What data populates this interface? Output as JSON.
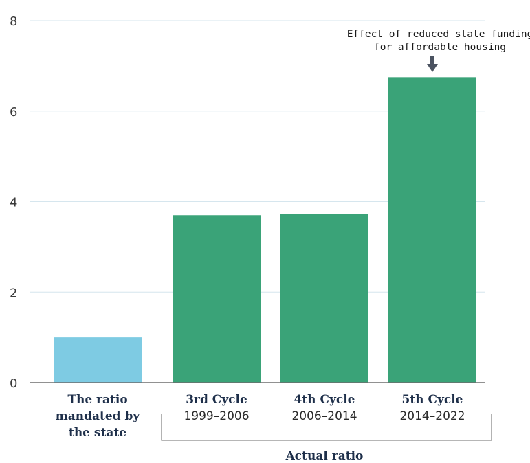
{
  "chart_data": {
    "type": "bar",
    "title": "",
    "xlabel": "",
    "ylabel": "",
    "ylim": [
      0,
      8
    ],
    "yticks": [
      0,
      2,
      4,
      6,
      8
    ],
    "grid": true,
    "categories": [
      {
        "label": "The ratio mandated by the state",
        "lines": [
          "The ratio",
          "mandated by",
          "the state"
        ],
        "sub": ""
      },
      {
        "label": "3rd Cycle",
        "lines": [
          "3rd Cycle"
        ],
        "sub": "1999–2006"
      },
      {
        "label": "4th Cycle",
        "lines": [
          "4th Cycle"
        ],
        "sub": "2006–2014"
      },
      {
        "label": "5th Cycle",
        "lines": [
          "5th Cycle"
        ],
        "sub": "2014–2022"
      }
    ],
    "values": [
      1.0,
      3.7,
      3.73,
      6.75
    ],
    "bar_colors": [
      "#7ecbe3",
      "#3aa378",
      "#3aa378",
      "#3aa378"
    ],
    "group_label": "Actual ratio",
    "annotation": {
      "lines": [
        "Effect of reduced state funding",
        "for affordable housing"
      ],
      "target_index": 3
    }
  }
}
